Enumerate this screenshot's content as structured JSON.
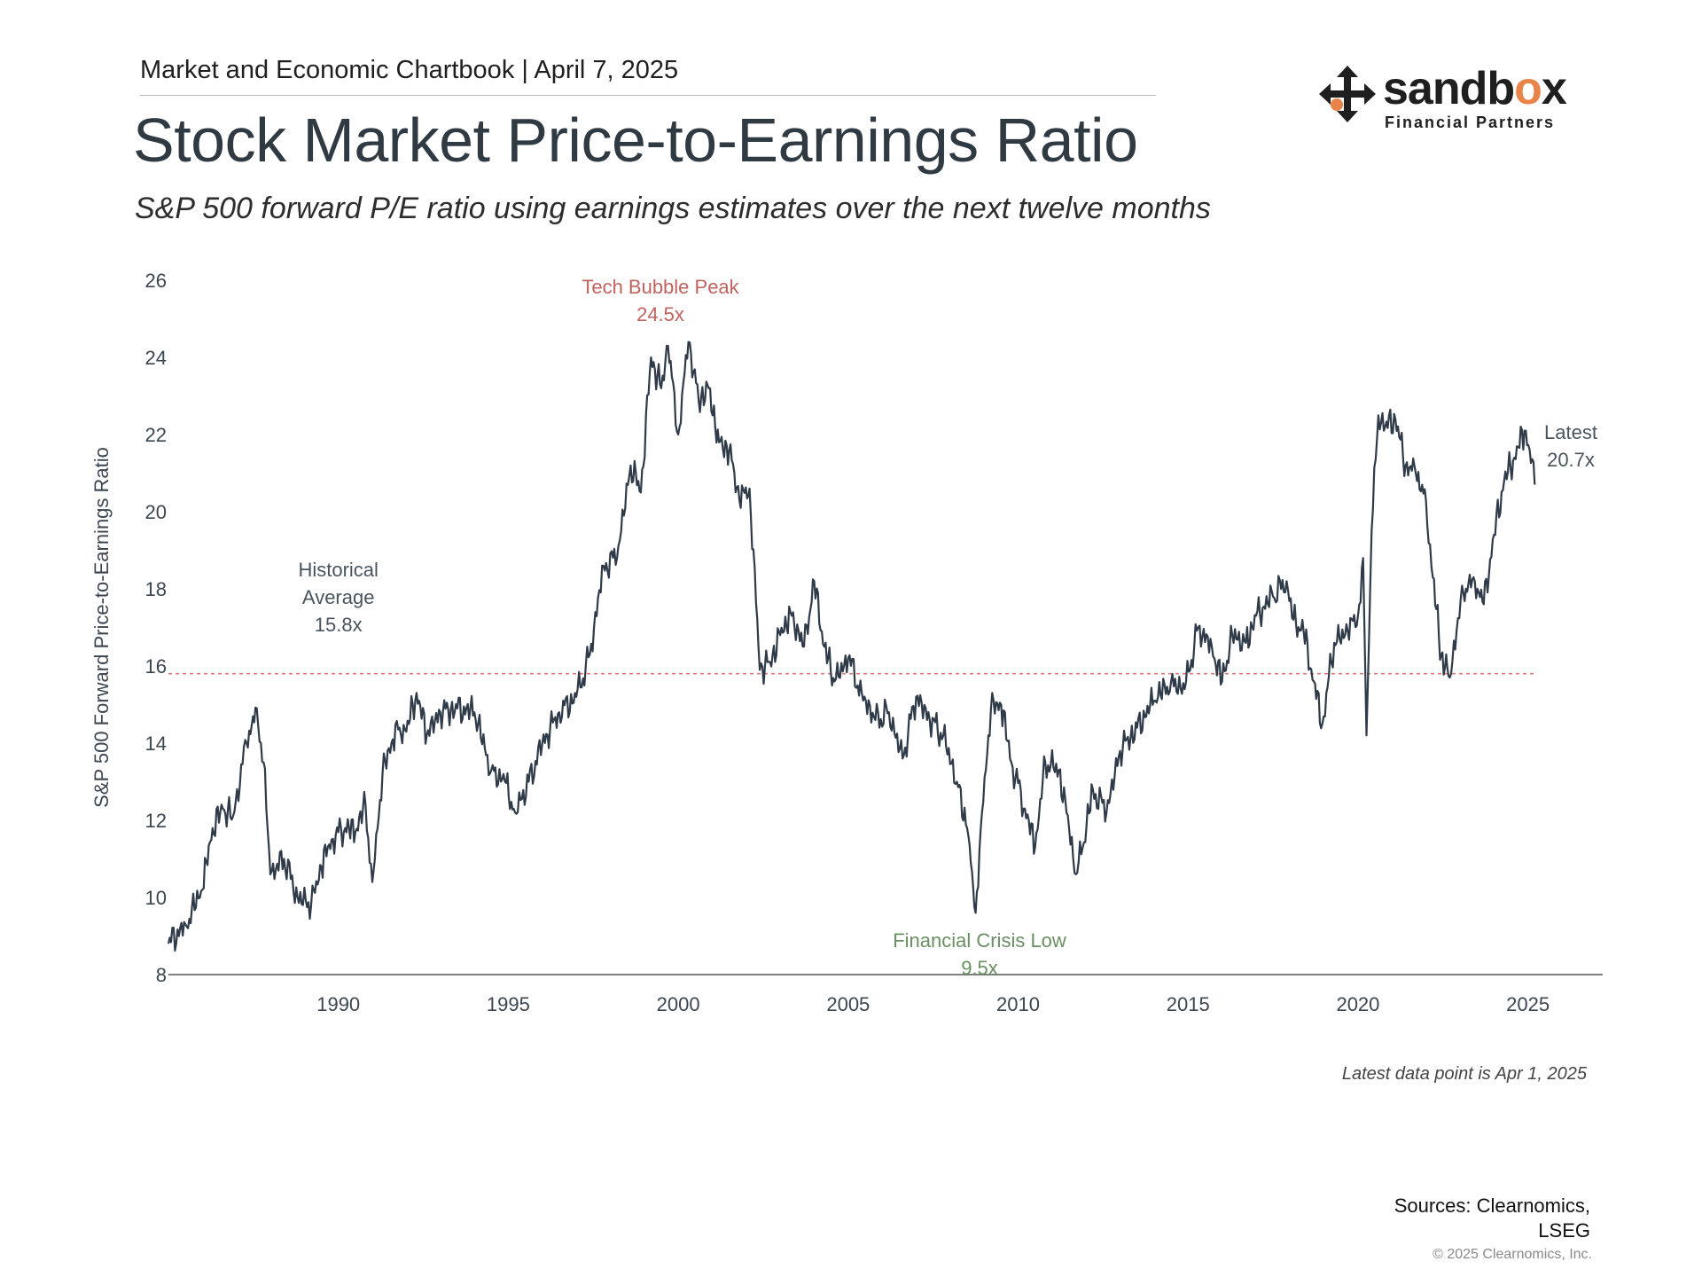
{
  "header": {
    "chartbook": "Market and Economic Chartbook | April 7, 2025",
    "title": "Stock Market Price-to-Earnings Ratio",
    "subtitle": "S&P 500 forward P/E ratio using earnings estimates over the next twelve months"
  },
  "logo": {
    "word_main": "sandb",
    "word_accent": "o",
    "word_end": "x",
    "subtitle": "Financial Partners",
    "colors": {
      "text": "#1f1f1f",
      "accent": "#e8834a"
    }
  },
  "chart_data": {
    "type": "line",
    "title": "",
    "xlabel": "",
    "ylabel": "S&P 500 Forward Price-to-Earnings Ratio",
    "ylim": [
      8,
      26
    ],
    "xlim": [
      1985.0,
      2027.2
    ],
    "yticks": [
      8,
      10,
      12,
      14,
      16,
      18,
      20,
      22,
      24,
      26
    ],
    "xticks": [
      1990,
      1995,
      2000,
      2005,
      2010,
      2015,
      2020,
      2025
    ],
    "grid": false,
    "series": [
      {
        "name": "S&P 500 forward P/E",
        "color": "#2f3b48",
        "x": [
          1985.0,
          1985.5,
          1986.0,
          1986.3,
          1986.6,
          1986.9,
          1987.3,
          1987.6,
          1987.8,
          1988.0,
          1988.4,
          1988.8,
          1989.2,
          1989.5,
          1989.8,
          1990.2,
          1990.5,
          1990.8,
          1991.0,
          1991.3,
          1991.6,
          1991.8,
          1992.0,
          1992.3,
          1992.6,
          1993.0,
          1993.5,
          1994.0,
          1994.5,
          1994.9,
          1995.2,
          1995.6,
          1996.0,
          1996.5,
          1997.0,
          1997.4,
          1997.8,
          1998.2,
          1998.6,
          1998.9,
          1999.2,
          1999.5,
          1999.7,
          2000.0,
          2000.3,
          2000.6,
          2000.9,
          2001.2,
          2001.5,
          2001.8,
          2002.1,
          2002.4,
          2002.7,
          2003.0,
          2003.3,
          2003.7,
          2004.0,
          2004.3,
          2004.6,
          2005.0,
          2005.4,
          2005.8,
          2006.2,
          2006.6,
          2007.0,
          2007.4,
          2007.8,
          2008.2,
          2008.5,
          2008.75,
          2008.9,
          2009.2,
          2009.5,
          2009.8,
          2010.2,
          2010.5,
          2010.8,
          2011.2,
          2011.5,
          2011.7,
          2011.9,
          2012.2,
          2012.6,
          2013.0,
          2013.5,
          2014.0,
          2014.5,
          2014.9,
          2015.3,
          2015.7,
          2016.0,
          2016.3,
          2016.7,
          2017.0,
          2017.5,
          2017.9,
          2018.1,
          2018.4,
          2018.7,
          2018.95,
          2019.3,
          2019.7,
          2020.0,
          2020.15,
          2020.25,
          2020.4,
          2020.6,
          2020.8,
          2021.1,
          2021.4,
          2021.7,
          2022.0,
          2022.2,
          2022.45,
          2022.7,
          2022.9,
          2023.1,
          2023.4,
          2023.7,
          2024.0,
          2024.3,
          2024.6,
          2024.9,
          2025.05,
          2025.2
        ],
        "values": [
          8.8,
          9.3,
          10.2,
          11.8,
          12.3,
          12.1,
          14.0,
          14.9,
          13.5,
          10.6,
          11.0,
          10.0,
          9.8,
          10.8,
          11.5,
          11.8,
          11.7,
          12.4,
          10.4,
          13.2,
          14.1,
          14.4,
          14.3,
          15.3,
          14.2,
          14.8,
          14.9,
          14.8,
          13.3,
          13.0,
          12.2,
          13.0,
          14.0,
          14.8,
          15.2,
          16.3,
          18.6,
          18.8,
          21.2,
          20.5,
          24.0,
          23.2,
          24.3,
          22.0,
          24.4,
          22.9,
          23.2,
          21.8,
          21.6,
          20.3,
          20.6,
          15.9,
          16.1,
          16.8,
          17.4,
          16.5,
          18.2,
          16.5,
          15.6,
          16.2,
          15.3,
          14.6,
          14.8,
          13.6,
          15.2,
          14.6,
          14.2,
          13.0,
          11.8,
          9.6,
          11.8,
          14.9,
          15.0,
          13.5,
          12.3,
          11.3,
          13.5,
          13.3,
          11.8,
          10.6,
          11.3,
          12.8,
          12.2,
          13.8,
          14.4,
          15.1,
          15.6,
          15.4,
          17.0,
          16.5,
          15.6,
          16.8,
          16.6,
          17.3,
          17.8,
          18.2,
          17.2,
          16.9,
          15.6,
          14.5,
          16.6,
          16.9,
          17.3,
          18.8,
          14.2,
          19.5,
          22.5,
          22.2,
          22.4,
          21.2,
          21.0,
          20.3,
          18.3,
          16.3,
          15.7,
          16.9,
          17.9,
          18.3,
          17.6,
          19.4,
          20.8,
          21.4,
          22.1,
          21.6,
          20.7
        ]
      }
    ],
    "historical_average": {
      "value": 15.8,
      "label_lines": [
        "Historical",
        "Average",
        "15.8x"
      ],
      "color": "#d77a7a"
    },
    "annotations": [
      {
        "id": "tech-bubble",
        "lines": [
          "Tech Bubble Peak",
          "24.5x"
        ],
        "x": 1999.7,
        "y": 24.5,
        "color": "#c2625e"
      },
      {
        "id": "financial-crisis",
        "lines": [
          "Financial Crisis Low",
          "9.5x"
        ],
        "x": 2008.75,
        "y": 9.5,
        "color": "#6a8f62"
      },
      {
        "id": "latest",
        "lines": [
          "Latest",
          "20.7x"
        ],
        "x": 2025.2,
        "y": 20.7,
        "color": "#4a545e"
      }
    ]
  },
  "footer": {
    "note": "Latest data point is Apr 1, 2025",
    "sources_line1": "Sources: Clearnomics,",
    "sources_line2": "LSEG",
    "copyright": "© 2025 Clearnomics, Inc."
  }
}
